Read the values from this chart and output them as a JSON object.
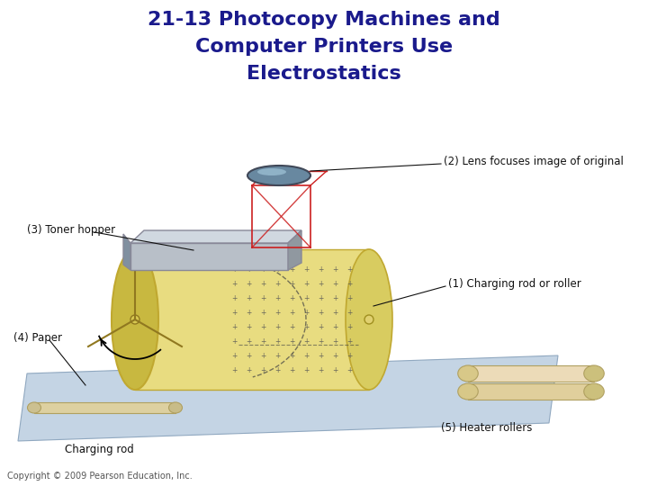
{
  "title_line1": "21-13 Photocopy Machines and",
  "title_line2": "Computer Printers Use",
  "title_line3": "Electrostatics",
  "title_color": "#1a1a8c",
  "title_fontsize": 16,
  "copyright": "Copyright © 2009 Pearson Education, Inc.",
  "copyright_fontsize": 7,
  "background_color": "#ffffff",
  "labels": {
    "label1": "(1) Charging rod or roller",
    "label2": "(2) Lens focuses image of original",
    "label3": "(3) Toner hopper",
    "label4": "(4) Paper",
    "label5": "(5) Heater rollers",
    "label6": "Charging rod"
  },
  "label_color": "#111111",
  "label_fontsize": 8.5,
  "drum_color_face": "#e8dc80",
  "drum_color_edge": "#c0a830",
  "drum_dark": "#c8b440",
  "paper_color": "#c4d4e4",
  "roller_color": "#e8d8b0",
  "toner_color": "#a8b0b8",
  "lens_color": "#7090a0",
  "red_line": "#cc2020"
}
